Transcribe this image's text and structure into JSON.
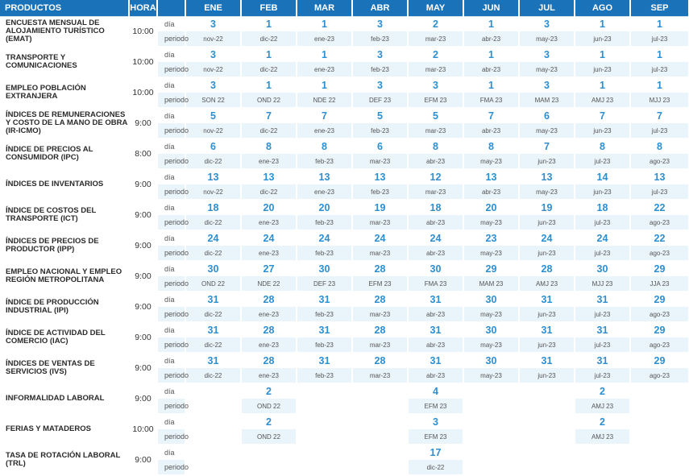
{
  "header": {
    "productos": "PRODUCTOS",
    "hora": "HORA",
    "months": [
      "ENE",
      "FEB",
      "MAR",
      "ABR",
      "MAY",
      "JUN",
      "JUL",
      "AGO",
      "SEP"
    ]
  },
  "labels": {
    "dia": "día",
    "periodo": "periodo"
  },
  "rows": [
    {
      "name": "ENCUESTA MENSUAL DE ALOJAMIENTO TURÍSTICO (EMAT)",
      "hora": "10:00",
      "days": [
        "3",
        "1",
        "1",
        "3",
        "2",
        "1",
        "3",
        "1",
        "1"
      ],
      "periods": [
        "nov-22",
        "dic-22",
        "ene-23",
        "feb-23",
        "mar-23",
        "abr-23",
        "may-23",
        "jun-23",
        "jul-23"
      ]
    },
    {
      "name": "TRANSPORTE Y COMUNICACIONES",
      "hora": "10:00",
      "days": [
        "3",
        "1",
        "1",
        "3",
        "2",
        "1",
        "3",
        "1",
        "1"
      ],
      "periods": [
        "nov-22",
        "dic-22",
        "ene-23",
        "feb-23",
        "mar-23",
        "abr-23",
        "may-23",
        "jun-23",
        "jul-23"
      ]
    },
    {
      "name": "EMPLEO POBLACIÓN EXTRANJERA",
      "hora": "10:00",
      "days": [
        "3",
        "1",
        "1",
        "3",
        "3",
        "1",
        "3",
        "1",
        "1"
      ],
      "periods": [
        "SON 22",
        "OND 22",
        "NDE 22",
        "DEF 23",
        "EFM 23",
        "FMA 23",
        "MAM 23",
        "AMJ 23",
        "MJJ 23"
      ]
    },
    {
      "name": "ÍNDICES DE REMUNERACIONES Y COSTO DE LA MANO DE OBRA (IR-ICMO)",
      "hora": "9:00",
      "days": [
        "5",
        "7",
        "7",
        "5",
        "5",
        "7",
        "6",
        "7",
        "7"
      ],
      "periods": [
        "nov-22",
        "dic-22",
        "ene-23",
        "feb-23",
        "mar-23",
        "abr-23",
        "may-23",
        "jun-23",
        "jul-23"
      ]
    },
    {
      "name": "ÍNDICE DE PRECIOS AL CONSUMIDOR (IPC)",
      "hora": "8:00",
      "days": [
        "6",
        "8",
        "8",
        "6",
        "8",
        "8",
        "7",
        "8",
        "8"
      ],
      "periods": [
        "dic-22",
        "ene-23",
        "feb-23",
        "mar-23",
        "abr-23",
        "may-23",
        "jun-23",
        "jul-23",
        "ago-23"
      ]
    },
    {
      "name": "ÍNDICES DE INVENTARIOS",
      "hora": "9:00",
      "days": [
        "13",
        "13",
        "13",
        "13",
        "12",
        "13",
        "13",
        "14",
        "13"
      ],
      "periods": [
        "nov-22",
        "dic-22",
        "ene-23",
        "feb-23",
        "mar-23",
        "abr-23",
        "may-23",
        "jun-23",
        "jul-23"
      ]
    },
    {
      "name": "ÍNDICE DE COSTOS DEL TRANSPORTE (ICT)",
      "hora": "9:00",
      "days": [
        "18",
        "20",
        "20",
        "19",
        "18",
        "20",
        "19",
        "18",
        "22"
      ],
      "periods": [
        "dic-22",
        "ene-23",
        "feb-23",
        "mar-23",
        "abr-23",
        "may-23",
        "jun-23",
        "jul-23",
        "ago-23"
      ]
    },
    {
      "name": "ÍNDICES DE PRECIOS DE PRODUCTOR (IPP)",
      "hora": "9:00",
      "days": [
        "24",
        "24",
        "24",
        "24",
        "24",
        "23",
        "24",
        "24",
        "22"
      ],
      "periods": [
        "dic-22",
        "ene-23",
        "feb-23",
        "mar-23",
        "abr-23",
        "may-23",
        "jun-23",
        "jul-23",
        "ago-23"
      ]
    },
    {
      "name": "EMPLEO NACIONAL Y EMPLEO REGIÓN METROPOLITANA",
      "hora": "9:00",
      "days": [
        "30",
        "27",
        "30",
        "28",
        "30",
        "29",
        "28",
        "30",
        "29"
      ],
      "periods": [
        "OND 22",
        "NDE 22",
        "DEF 23",
        "EFM 23",
        "FMA 23",
        "MAM 23",
        "AMJ 23",
        "MJJ 23",
        "JJA 23"
      ]
    },
    {
      "name": "ÍNDICE DE PRODUCCIÓN INDUSTRIAL (IPI)",
      "hora": "9:00",
      "days": [
        "31",
        "28",
        "31",
        "28",
        "31",
        "30",
        "31",
        "31",
        "29"
      ],
      "periods": [
        "dic-22",
        "ene-23",
        "feb-23",
        "mar-23",
        "abr-23",
        "may-23",
        "jun-23",
        "jul-23",
        "ago-23"
      ]
    },
    {
      "name": "ÍNDICE DE ACTIVIDAD DEL COMERCIO (IAC)",
      "hora": "9:00",
      "days": [
        "31",
        "28",
        "31",
        "28",
        "31",
        "30",
        "31",
        "31",
        "29"
      ],
      "periods": [
        "dic-22",
        "ene-23",
        "feb-23",
        "mar-23",
        "abr-23",
        "may-23",
        "jun-23",
        "jul-23",
        "ago-23"
      ]
    },
    {
      "name": "ÍNDICES DE VENTAS DE SERVICIOS (IVS)",
      "hora": "9:00",
      "days": [
        "31",
        "28",
        "31",
        "28",
        "31",
        "30",
        "31",
        "31",
        "29"
      ],
      "periods": [
        "dic-22",
        "ene-23",
        "feb-23",
        "mar-23",
        "abr-23",
        "may-23",
        "jun-23",
        "jul-23",
        "ago-23"
      ]
    },
    {
      "name": "INFORMALIDAD LABORAL",
      "hora": "9:00",
      "days": [
        "",
        "2",
        "",
        "",
        "4",
        "",
        "",
        "2",
        ""
      ],
      "periods": [
        "",
        "OND 22",
        "",
        "",
        "EFM 23",
        "",
        "",
        "AMJ 23",
        ""
      ]
    },
    {
      "name": "FERIAS Y MATADEROS",
      "hora": "10:00",
      "days": [
        "",
        "2",
        "",
        "",
        "3",
        "",
        "",
        "2",
        ""
      ],
      "periods": [
        "",
        "OND 22",
        "",
        "",
        "EFM 23",
        "",
        "",
        "AMJ 23",
        ""
      ]
    },
    {
      "name": "TASA DE ROTACIÓN LABORAL (TRL)",
      "hora": "9:00",
      "days": [
        "",
        "",
        "",
        "",
        "17",
        "",
        "",
        "",
        ""
      ],
      "periods": [
        "",
        "",
        "",
        "",
        "dic-22",
        "",
        "",
        "",
        ""
      ]
    }
  ]
}
